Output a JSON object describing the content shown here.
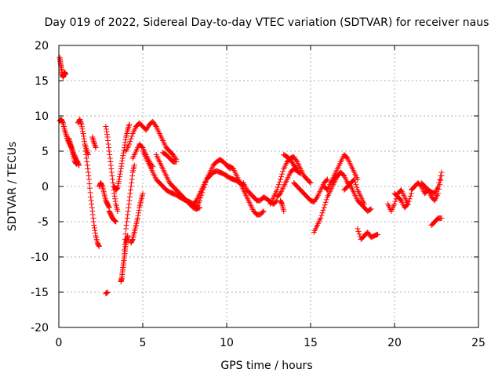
{
  "chart_data": {
    "type": "scatter",
    "title": "Day 019 of 2022, Sidereal Day-to-day VTEC variation (SDTVAR) for receiver naus",
    "xlabel": "GPS time / hours",
    "ylabel": "SDTVAR / TECUs",
    "xlim": [
      0,
      25
    ],
    "ylim": [
      -20,
      20
    ],
    "xticks": [
      0,
      5,
      10,
      15,
      20,
      25
    ],
    "xtick_labels": [
      "0",
      "5",
      "10",
      "15",
      "20",
      "25"
    ],
    "yticks": [
      -20,
      -15,
      -10,
      -5,
      0,
      5,
      10,
      15,
      20
    ],
    "ytick_labels": [
      "-20",
      "-15",
      "-10",
      "-5",
      "0",
      "5",
      "10",
      "15",
      "20"
    ],
    "grid": true,
    "marker": "plus",
    "series": [
      {
        "name": "SDTVAR",
        "color": "#ff0000",
        "segments": [
          {
            "x": [
              0.05,
              0.1,
              0.15,
              0.2,
              0.25,
              0.3,
              0.35,
              0.4
            ],
            "y": [
              18.3,
              17.5,
              16.8,
              16.0,
              15.5,
              15.8,
              16.2,
              15.9
            ]
          },
          {
            "x": [
              0.05,
              0.15,
              0.25,
              0.35,
              0.45,
              0.55,
              0.65,
              0.75,
              0.85,
              0.95,
              1.05
            ],
            "y": [
              9.3,
              9.5,
              9.0,
              8.0,
              7.2,
              6.5,
              6.0,
              5.5,
              4.5,
              3.5,
              3.2
            ]
          },
          {
            "x": [
              0.6,
              0.7,
              0.8,
              0.9,
              1.0,
              1.1,
              1.2
            ],
            "y": [
              6.8,
              6.0,
              5.2,
              4.5,
              4.0,
              3.5,
              3.0
            ]
          },
          {
            "x": [
              1.15,
              1.25,
              1.35,
              1.45,
              1.55,
              1.65,
              1.75
            ],
            "y": [
              9.0,
              9.5,
              8.8,
              7.5,
              6.0,
              5.2,
              4.5
            ]
          },
          {
            "x": [
              1.6,
              1.7,
              1.8,
              1.9,
              2.0,
              2.1,
              2.2,
              2.3,
              2.4
            ],
            "y": [
              5.0,
              3.0,
              1.0,
              -1.5,
              -3.5,
              -5.5,
              -7.0,
              -8.0,
              -8.5
            ]
          },
          {
            "x": [
              2.0,
              2.1,
              2.2
            ],
            "y": [
              7.0,
              6.2,
              5.5
            ]
          },
          {
            "x": [
              2.4,
              2.5,
              2.6,
              2.7,
              2.8,
              2.9,
              3.0
            ],
            "y": [
              0.0,
              0.5,
              0.0,
              -1.0,
              -2.0,
              -2.5,
              -3.0
            ]
          },
          {
            "x": [
              2.8,
              2.9,
              3.0,
              3.1,
              3.2,
              3.3,
              3.4,
              3.5
            ],
            "y": [
              8.5,
              7.0,
              5.0,
              3.0,
              1.0,
              -1.0,
              -2.5,
              -3.5
            ]
          },
          {
            "x": [
              3.0,
              3.1,
              3.2,
              3.3,
              3.4
            ],
            "y": [
              -3.5,
              -4.0,
              -4.5,
              -4.8,
              -5.0
            ]
          },
          {
            "x": [
              2.8,
              2.9
            ],
            "y": [
              -15.2,
              -15.0
            ]
          },
          {
            "x": [
              3.3,
              3.4,
              3.5,
              3.6,
              3.7,
              3.8,
              3.9,
              4.0,
              4.1,
              4.2
            ],
            "y": [
              0.0,
              -0.5,
              -0.2,
              1.0,
              2.5,
              4.0,
              5.5,
              7.0,
              8.0,
              8.8
            ]
          },
          {
            "x": [
              3.7,
              3.75,
              3.8,
              3.85,
              3.9,
              3.95,
              4.0,
              4.05,
              4.1
            ],
            "y": [
              -13.5,
              -13.0,
              -12.0,
              -11.0,
              -10.0,
              -9.0,
              -8.0,
              -7.5,
              -7.0
            ]
          },
          {
            "x": [
              3.9,
              4.0,
              4.1,
              4.2,
              4.3,
              4.4,
              4.5
            ],
            "y": [
              -9.0,
              -6.0,
              -4.0,
              -2.0,
              0.0,
              2.0,
              3.0
            ]
          },
          {
            "x": [
              4.3,
              4.4,
              4.5,
              4.6,
              4.7,
              4.8,
              4.9,
              5.0
            ],
            "y": [
              -8.0,
              -7.5,
              -6.5,
              -5.5,
              -4.5,
              -3.0,
              -2.0,
              -1.0
            ]
          },
          {
            "x": [
              4.0,
              4.2,
              4.4,
              4.6,
              4.8,
              5.0,
              5.2,
              5.4,
              5.6,
              5.8,
              6.0,
              6.2,
              6.4,
              6.6,
              6.8,
              7.0
            ],
            "y": [
              5.0,
              6.0,
              7.5,
              8.5,
              9.0,
              8.5,
              8.0,
              8.8,
              9.2,
              8.5,
              7.5,
              6.5,
              5.5,
              5.0,
              4.5,
              3.8
            ]
          },
          {
            "x": [
              4.4,
              4.6,
              4.8,
              5.0,
              5.2,
              5.4,
              5.6
            ],
            "y": [
              4.0,
              5.0,
              6.0,
              5.5,
              4.5,
              3.5,
              2.8
            ]
          },
          {
            "x": [
              5.0,
              5.2,
              5.4,
              5.6,
              5.8,
              6.0,
              6.2,
              6.4,
              6.6,
              6.8,
              7.0,
              7.2,
              7.4,
              7.6,
              7.8,
              8.0,
              8.2,
              8.4
            ],
            "y": [
              5.0,
              4.0,
              3.0,
              2.0,
              1.0,
              0.5,
              0.0,
              -0.5,
              -0.8,
              -1.0,
              -1.2,
              -1.5,
              -1.8,
              -2.0,
              -2.2,
              -2.5,
              -2.0,
              -1.0
            ]
          },
          {
            "x": [
              5.8,
              6.0,
              6.2,
              6.4,
              6.6,
              6.8,
              7.0,
              7.2,
              7.4,
              7.6,
              7.8,
              8.0,
              8.2,
              8.4
            ],
            "y": [
              4.5,
              3.5,
              2.5,
              1.5,
              0.5,
              0.0,
              -0.5,
              -1.0,
              -1.5,
              -2.0,
              -2.5,
              -3.0,
              -3.2,
              -3.0
            ]
          },
          {
            "x": [
              6.2,
              6.4,
              6.6,
              6.8,
              7.0
            ],
            "y": [
              4.8,
              4.5,
              4.0,
              3.5,
              3.5
            ]
          },
          {
            "x": [
              8.0,
              8.2,
              8.4,
              8.6,
              8.8,
              9.0,
              9.2,
              9.4,
              9.6,
              9.8,
              10.0,
              10.2
            ],
            "y": [
              -2.5,
              -3.0,
              -2.0,
              -0.5,
              1.0,
              2.0,
              3.0,
              3.5,
              3.8,
              3.5,
              3.0,
              2.5
            ]
          },
          {
            "x": [
              8.4,
              8.6,
              8.8,
              9.0,
              9.2,
              9.4,
              9.6,
              9.8,
              10.0,
              10.2,
              10.4,
              10.6,
              10.8,
              11.0
            ],
            "y": [
              -1.0,
              0.0,
              1.0,
              1.5,
              2.0,
              2.2,
              2.0,
              1.8,
              1.5,
              1.2,
              1.0,
              0.8,
              0.5,
              0.2
            ]
          },
          {
            "x": [
              10.0,
              10.2,
              10.4,
              10.6,
              10.8,
              11.0,
              11.2,
              11.4,
              11.6,
              11.8,
              12.0,
              12.2
            ],
            "y": [
              3.0,
              2.8,
              2.5,
              1.5,
              0.5,
              -0.5,
              -1.5,
              -2.5,
              -3.5,
              -4.0,
              -4.0,
              -3.5
            ]
          },
          {
            "x": [
              11.0,
              11.2,
              11.4,
              11.6,
              11.8,
              12.0,
              12.2,
              12.4,
              12.6,
              12.8,
              13.0
            ],
            "y": [
              0.5,
              -0.5,
              -1.0,
              -1.5,
              -2.0,
              -2.0,
              -1.5,
              -1.8,
              -2.2,
              -2.5,
              -2.0
            ]
          },
          {
            "x": [
              12.6,
              12.8,
              13.0,
              13.2,
              13.4,
              13.6,
              13.8,
              14.0,
              14.2,
              14.4,
              14.6,
              14.8,
              15.0
            ],
            "y": [
              -2.5,
              -1.5,
              -0.5,
              1.0,
              2.5,
              3.5,
              4.0,
              4.2,
              3.5,
              2.5,
              1.5,
              1.0,
              0.5
            ]
          },
          {
            "x": [
              13.0,
              13.2,
              13.4,
              13.6,
              13.8,
              14.0,
              14.2,
              14.4
            ],
            "y": [
              -1.5,
              -1.0,
              0.0,
              1.0,
              2.0,
              2.5,
              2.2,
              1.8
            ]
          },
          {
            "x": [
              13.4,
              13.6,
              13.8,
              14.0,
              14.2
            ],
            "y": [
              4.5,
              4.2,
              3.8,
              3.0,
              2.5
            ]
          },
          {
            "x": [
              14.0,
              14.2,
              14.4,
              14.6,
              14.8,
              15.0,
              15.2,
              15.4,
              15.6,
              15.8,
              16.0
            ],
            "y": [
              0.5,
              0.0,
              -0.5,
              -1.0,
              -1.5,
              -2.0,
              -2.2,
              -1.5,
              -0.5,
              0.5,
              1.0
            ]
          },
          {
            "x": [
              13.2,
              13.3,
              13.4
            ],
            "y": [
              -2.0,
              -2.5,
              -3.5
            ]
          },
          {
            "x": [
              15.2,
              15.4,
              15.6,
              15.8,
              16.0,
              16.2,
              16.4,
              16.6,
              16.8
            ],
            "y": [
              -6.5,
              -5.5,
              -4.5,
              -3.0,
              -1.5,
              -0.5,
              0.5,
              1.5,
              2.0
            ]
          },
          {
            "x": [
              15.8,
              16.0,
              16.2,
              16.4,
              16.6,
              16.8,
              17.0,
              17.2,
              17.4,
              17.6,
              17.8
            ],
            "y": [
              0.0,
              -0.5,
              0.5,
              1.5,
              2.5,
              3.5,
              4.5,
              4.0,
              3.0,
              2.0,
              1.0
            ]
          },
          {
            "x": [
              16.2,
              16.4,
              16.6,
              16.8,
              17.0,
              17.2,
              17.4,
              17.6,
              17.8,
              18.0,
              18.2,
              18.4,
              18.6
            ],
            "y": [
              0.5,
              1.0,
              1.5,
              2.0,
              1.5,
              0.5,
              0.0,
              -1.0,
              -2.0,
              -2.5,
              -3.0,
              -3.5,
              -3.2
            ]
          },
          {
            "x": [
              17.0,
              17.2,
              17.4,
              17.6,
              17.8,
              18.0,
              18.2
            ],
            "y": [
              -0.5,
              0.0,
              0.5,
              1.0,
              -0.5,
              -1.5,
              -2.5
            ]
          },
          {
            "x": [
              17.8,
              18.0,
              18.2,
              18.4,
              18.6,
              18.8,
              19.0
            ],
            "y": [
              -6.0,
              -7.5,
              -7.0,
              -6.5,
              -7.2,
              -7.0,
              -6.8
            ]
          },
          {
            "x": [
              19.6,
              19.8,
              20.0,
              20.2,
              20.4,
              20.6,
              20.8,
              21.0
            ],
            "y": [
              -2.5,
              -3.5,
              -2.5,
              -1.0,
              -0.5,
              -1.5,
              -2.5,
              -1.0
            ]
          },
          {
            "x": [
              20.0,
              20.2,
              20.4,
              20.6,
              20.8
            ],
            "y": [
              -1.0,
              -1.5,
              -2.0,
              -3.0,
              -2.5
            ]
          },
          {
            "x": [
              21.0,
              21.2,
              21.4,
              21.6,
              21.8,
              22.0,
              22.2,
              22.4,
              22.6,
              22.8
            ],
            "y": [
              -0.5,
              0.0,
              0.5,
              0.0,
              -1.0,
              -0.5,
              -1.5,
              -2.0,
              -1.0,
              1.5
            ]
          },
          {
            "x": [
              21.6,
              21.8,
              22.0,
              22.2,
              22.4,
              22.6,
              22.8
            ],
            "y": [
              0.5,
              0.0,
              -0.5,
              -0.8,
              -1.0,
              0.0,
              2.0
            ]
          },
          {
            "x": [
              22.2,
              22.4,
              22.6,
              22.8
            ],
            "y": [
              -5.5,
              -5.0,
              -4.5,
              -4.5
            ]
          }
        ]
      }
    ]
  }
}
